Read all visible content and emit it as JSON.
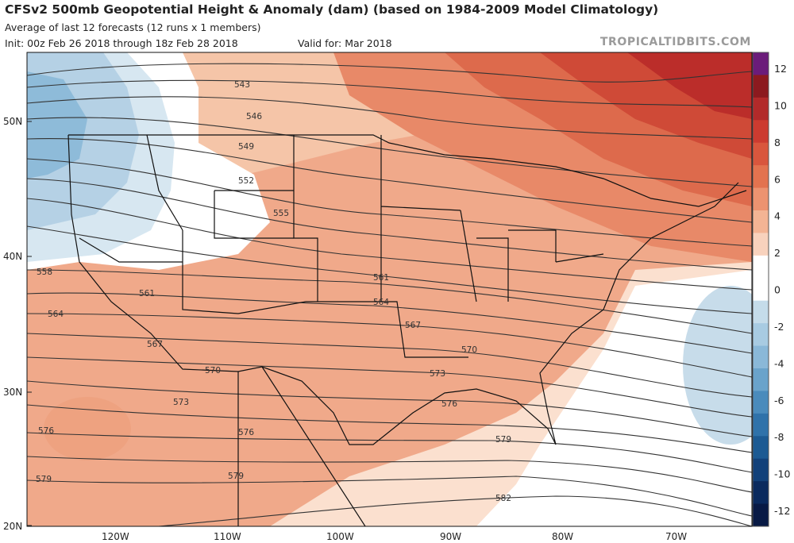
{
  "header": {
    "title": "CFSv2 500mb Geopotential Height & Anomaly (dam) (based on 1984-2009 Model Climatology)",
    "subtitle": "Average of last 12 forecasts (12 runs x 1 members)",
    "init": "Init: 00z Feb 26 2018 through 18z Feb 28 2018",
    "valid": "Valid for: Mar 2018",
    "credit": "TROPICALTIDBITS.COM"
  },
  "colors": {
    "red_anomaly": "#c0392b",
    "blue_anomaly": "#2166ac",
    "zero_anomaly": "#ffffff",
    "contour_line": "#333333"
  },
  "map": {
    "lat_labels": [
      "50N",
      "40N",
      "30N",
      "20N"
    ],
    "lon_labels": [
      "120W",
      "110W",
      "100W",
      "90W",
      "80W",
      "70W"
    ],
    "contour_labels": [
      "543",
      "546",
      "549",
      "552",
      "555",
      "558",
      "561",
      "561",
      "564",
      "564",
      "567",
      "567",
      "570",
      "570",
      "573",
      "573",
      "576",
      "576",
      "576",
      "579",
      "579",
      "579",
      "582"
    ]
  },
  "colorbar": {
    "ticks": [
      "12",
      "10",
      "8",
      "6",
      "4",
      "2",
      "0",
      "-2",
      "-4",
      "-6",
      "-8",
      "-10",
      "-12"
    ],
    "colors": [
      "#6b1c7a",
      "#8c1a1f",
      "#b22a2a",
      "#cc3b30",
      "#d9563d",
      "#e3734f",
      "#ec9370",
      "#f3b494",
      "#f8d2bd",
      "#ffffff",
      "#ffffff",
      "#c5dcea",
      "#a8cbe2",
      "#8ab8d8",
      "#6aa3cb",
      "#4a8bbc",
      "#2f72aa",
      "#1c5a93",
      "#12417a",
      "#0a2a5e",
      "#081a45"
    ]
  }
}
